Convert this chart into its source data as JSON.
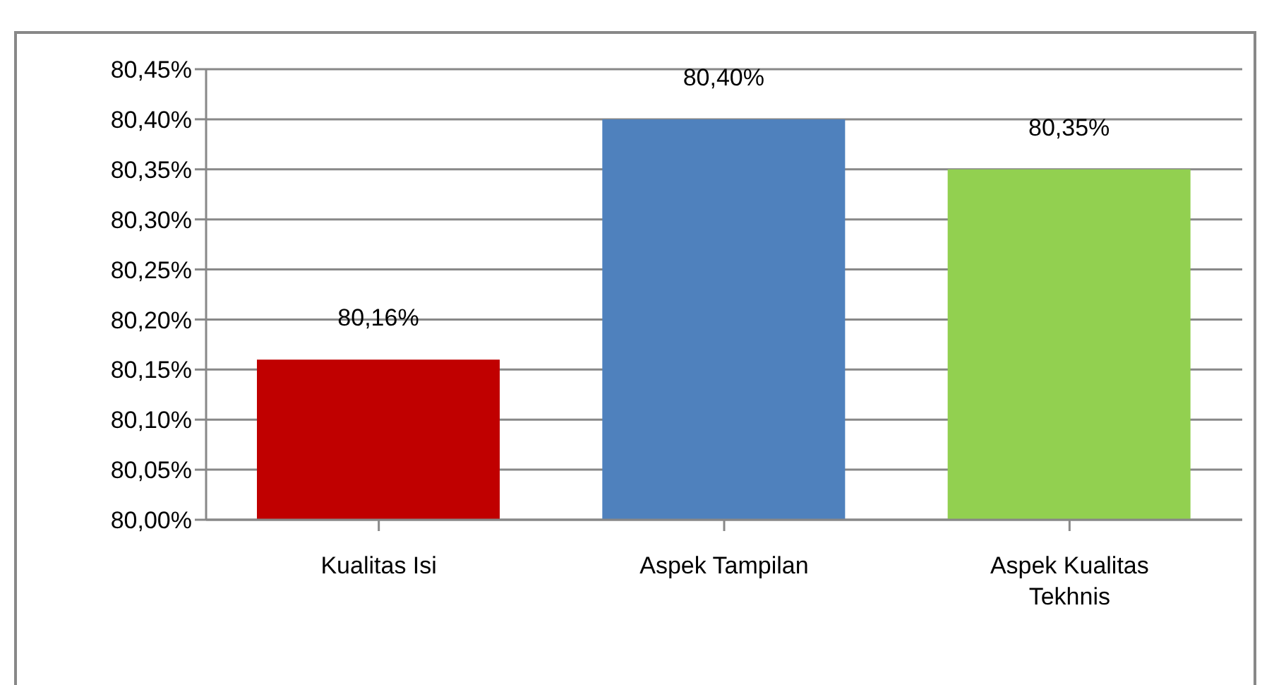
{
  "chart_data": {
    "type": "bar",
    "categories": [
      "Kualitas Isi",
      "Aspek Tampilan",
      "Aspek Kualitas Tekhnis"
    ],
    "values": [
      80.16,
      80.4,
      80.35
    ],
    "colors": [
      "#c00000",
      "#4f81bd",
      "#92d050"
    ],
    "value_labels": [
      "80,16%",
      "80,40%",
      "80,35%"
    ],
    "ylim": [
      80,
      80.45
    ],
    "yticks": [
      {
        "value": 80,
        "label": "80,00%"
      },
      {
        "value": 80.05,
        "label": "80,05%"
      },
      {
        "value": 80.1,
        "label": "80,10%"
      },
      {
        "value": 80.15,
        "label": "80,15%"
      },
      {
        "value": 80.2,
        "label": "80,20%"
      },
      {
        "value": 80.25,
        "label": "80,25%"
      },
      {
        "value": 80.3,
        "label": "80,30%"
      },
      {
        "value": 80.35,
        "label": "80,35%"
      },
      {
        "value": 80.4,
        "label": "80,40%"
      },
      {
        "value": 80.45,
        "label": "80,45%"
      }
    ],
    "grid": "y",
    "legend": false
  }
}
